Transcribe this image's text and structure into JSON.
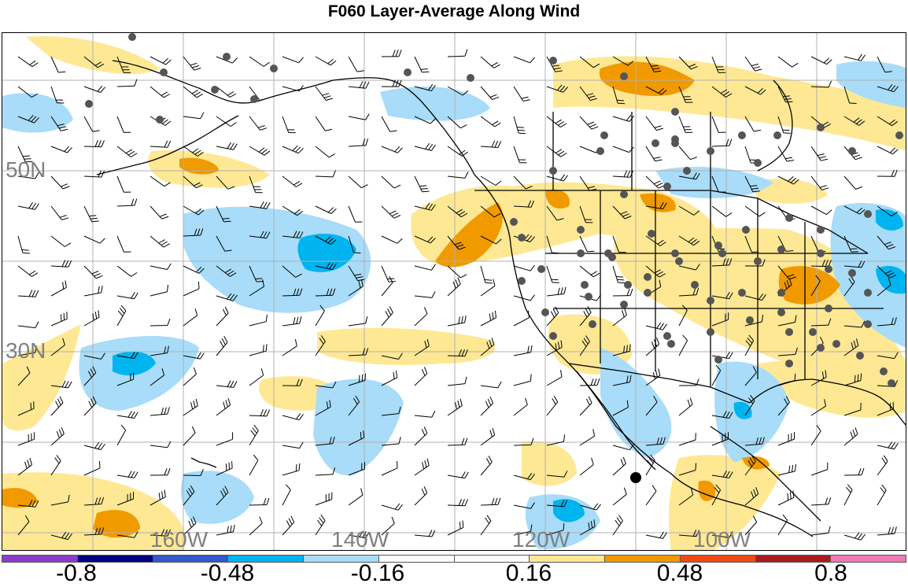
{
  "title": "F060 Layer-Average Along Wind",
  "lat_labels": [
    "50N",
    "30N"
  ],
  "lon_labels": [
    "160W",
    "140W",
    "120W",
    "100W"
  ],
  "colorbar": {
    "colors": [
      "#8c3cc8",
      "#000080",
      "#3358c8",
      "#00b4f0",
      "#a8dcf8",
      "#ffffff",
      "#ffffff",
      "#ffe894",
      "#f09a00",
      "#f04a14",
      "#a81c1c",
      "#f07ab4"
    ],
    "labels": [
      "-0.8",
      "-0.48",
      "-0.16",
      "0.16",
      "0.48",
      "0.8"
    ]
  },
  "colors": {
    "light_blue": "#a8dcf8",
    "blue": "#00b4f0",
    "light_yellow": "#ffe894",
    "orange": "#f09a00",
    "grid": "#b0b0b0",
    "station_dot": "#555555"
  }
}
